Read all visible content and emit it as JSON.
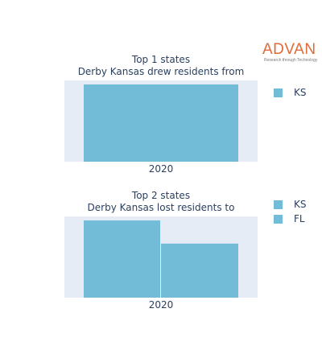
{
  "logo": {
    "word": "ADVAN",
    "tagline": "Research through Technology"
  },
  "chart_data": [
    {
      "type": "bar",
      "title_lines": [
        "Top 1 states",
        "Derby Kansas drew residents from"
      ],
      "categories": [
        "2020"
      ],
      "series": [
        {
          "name": "KS",
          "values": [
            1.0
          ]
        }
      ],
      "color": "#73bcd7",
      "plot_bg": "#e5ecf6",
      "legend": "right"
    },
    {
      "type": "bar",
      "title_lines": [
        "Top 2 states",
        "Derby Kansas lost residents to"
      ],
      "categories": [
        "2020"
      ],
      "series": [
        {
          "name": "KS",
          "values": [
            1.0
          ]
        },
        {
          "name": "FL",
          "values": [
            0.7
          ]
        }
      ],
      "color": "#73bcd7",
      "plot_bg": "#e5ecf6",
      "legend": "right"
    }
  ]
}
